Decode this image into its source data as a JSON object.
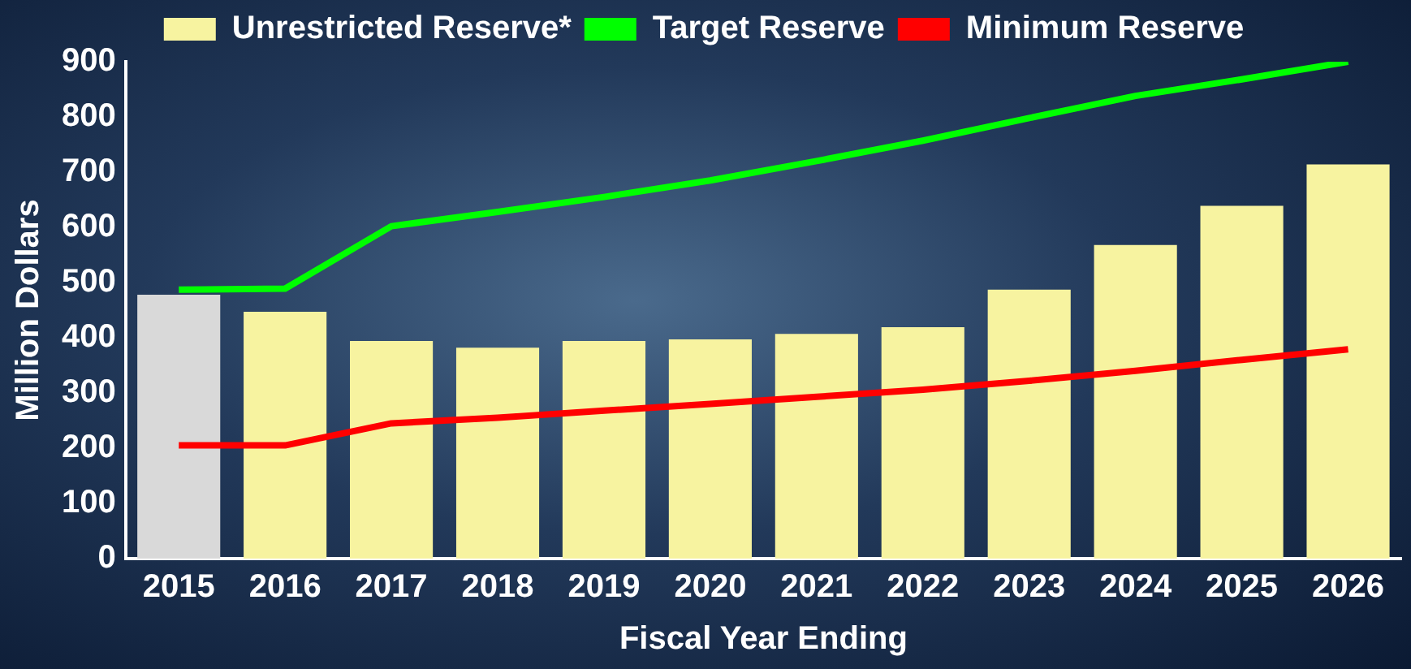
{
  "chart_data": {
    "type": "bar",
    "xlabel": "Fiscal Year Ending",
    "ylabel": "Million Dollars",
    "categories": [
      "2015",
      "2016",
      "2017",
      "2018",
      "2019",
      "2020",
      "2021",
      "2022",
      "2023",
      "2024",
      "2025",
      "2026"
    ],
    "series": [
      {
        "name": "Unrestricted Reserve*",
        "color": "#f7f3a0",
        "colors": [
          "#d9d9d9",
          "#f7f3a0",
          "#f7f3a0",
          "#f7f3a0",
          "#f7f3a0",
          "#f7f3a0",
          "#f7f3a0",
          "#f7f3a0",
          "#f7f3a0",
          "#f7f3a0",
          "#f7f3a0",
          "#f7f3a0"
        ],
        "values": [
          478,
          447,
          394,
          382,
          394,
          397,
          407,
          419,
          487,
          568,
          639,
          714
        ]
      },
      {
        "name": "Target Reserve",
        "type": "line",
        "color": "#00ff00",
        "values": [
          487,
          489,
          602,
          628,
          655,
          685,
          720,
          757,
          798,
          838,
          868,
          900
        ]
      },
      {
        "name": "Minimum Reserve",
        "type": "line",
        "color": "#ff0000",
        "values": [
          205,
          205,
          245,
          255,
          268,
          280,
          293,
          306,
          322,
          340,
          360,
          379
        ]
      }
    ],
    "ylim": [
      0,
      900
    ],
    "yticks": [
      0,
      100,
      200,
      300,
      400,
      500,
      600,
      700,
      800,
      900
    ],
    "grid": false,
    "legend": "top",
    "marker": "none"
  }
}
